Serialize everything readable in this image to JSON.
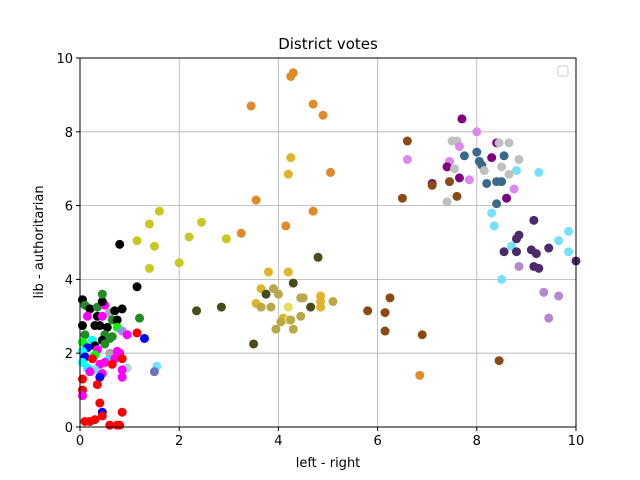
{
  "chart_data": {
    "type": "scatter",
    "title": "District votes",
    "xlabel": "left - right",
    "ylabel": "lib - authoritarian",
    "xlim": [
      0,
      10
    ],
    "ylim": [
      0,
      10
    ],
    "xticks": [
      "0",
      "2",
      "4",
      "6",
      "8",
      "10"
    ],
    "yticks": [
      "0",
      "2",
      "4",
      "6",
      "8",
      "10"
    ],
    "grid": true,
    "legend": "top-right (empty)",
    "points": [
      {
        "x": 4.3,
        "y": 9.6,
        "c": "#e08a28"
      },
      {
        "x": 4.25,
        "y": 9.5,
        "c": "#e08a28"
      },
      {
        "x": 3.45,
        "y": 8.7,
        "c": "#e08a28"
      },
      {
        "x": 4.7,
        "y": 8.75,
        "c": "#e08a28"
      },
      {
        "x": 4.9,
        "y": 8.45,
        "c": "#e08a28"
      },
      {
        "x": 4.25,
        "y": 7.3,
        "c": "#e0b428"
      },
      {
        "x": 4.2,
        "y": 6.85,
        "c": "#e0b428"
      },
      {
        "x": 5.05,
        "y": 6.9,
        "c": "#e08a28"
      },
      {
        "x": 3.55,
        "y": 6.15,
        "c": "#e08a28"
      },
      {
        "x": 4.7,
        "y": 5.85,
        "c": "#e08a28"
      },
      {
        "x": 4.15,
        "y": 5.45,
        "c": "#e08a28"
      },
      {
        "x": 3.25,
        "y": 5.25,
        "c": "#e08a28"
      },
      {
        "x": 1.6,
        "y": 5.85,
        "c": "#c8c820"
      },
      {
        "x": 1.4,
        "y": 5.5,
        "c": "#c8c820"
      },
      {
        "x": 2.45,
        "y": 5.55,
        "c": "#c8c820"
      },
      {
        "x": 2.2,
        "y": 5.15,
        "c": "#c8c820"
      },
      {
        "x": 1.15,
        "y": 5.05,
        "c": "#c8c820"
      },
      {
        "x": 2.95,
        "y": 5.1,
        "c": "#c8c820"
      },
      {
        "x": 1.5,
        "y": 4.9,
        "c": "#c8c820"
      },
      {
        "x": 2.0,
        "y": 4.45,
        "c": "#c8c820"
      },
      {
        "x": 1.4,
        "y": 4.3,
        "c": "#c8c820"
      },
      {
        "x": 0.8,
        "y": 4.95,
        "c": "#000000"
      },
      {
        "x": 1.15,
        "y": 3.8,
        "c": "#000000"
      },
      {
        "x": 4.8,
        "y": 4.6,
        "c": "#4a4a1a"
      },
      {
        "x": 3.8,
        "y": 4.2,
        "c": "#e0b428"
      },
      {
        "x": 4.2,
        "y": 4.2,
        "c": "#e0b428"
      },
      {
        "x": 3.65,
        "y": 3.75,
        "c": "#e0b428"
      },
      {
        "x": 3.9,
        "y": 3.75,
        "c": "#b8a84a"
      },
      {
        "x": 4.3,
        "y": 3.9,
        "c": "#4a4a1a"
      },
      {
        "x": 3.75,
        "y": 3.6,
        "c": "#4a4a1a"
      },
      {
        "x": 4.0,
        "y": 3.6,
        "c": "#b8a84a"
      },
      {
        "x": 4.5,
        "y": 3.5,
        "c": "#b8a84a"
      },
      {
        "x": 4.45,
        "y": 3.5,
        "c": "#b8a84a"
      },
      {
        "x": 4.85,
        "y": 3.55,
        "c": "#e0b428"
      },
      {
        "x": 5.1,
        "y": 3.4,
        "c": "#b8a84a"
      },
      {
        "x": 4.85,
        "y": 3.4,
        "c": "#e0b428"
      },
      {
        "x": 3.55,
        "y": 3.35,
        "c": "#e0b428"
      },
      {
        "x": 3.65,
        "y": 3.25,
        "c": "#b8a84a"
      },
      {
        "x": 3.85,
        "y": 3.25,
        "c": "#b8a84a"
      },
      {
        "x": 4.2,
        "y": 3.25,
        "c": "#e0e050"
      },
      {
        "x": 4.65,
        "y": 3.25,
        "c": "#4a4a1a"
      },
      {
        "x": 4.85,
        "y": 3.25,
        "c": "#e0b428"
      },
      {
        "x": 2.35,
        "y": 3.15,
        "c": "#4a4a1a"
      },
      {
        "x": 2.85,
        "y": 3.25,
        "c": "#4a4a1a"
      },
      {
        "x": 4.1,
        "y": 2.95,
        "c": "#e0b428"
      },
      {
        "x": 4.2,
        "y": 2.9,
        "c": "#e0e050"
      },
      {
        "x": 4.25,
        "y": 2.9,
        "c": "#b8a84a"
      },
      {
        "x": 4.45,
        "y": 3.0,
        "c": "#b8a84a"
      },
      {
        "x": 4.05,
        "y": 2.85,
        "c": "#b8a84a"
      },
      {
        "x": 3.95,
        "y": 2.65,
        "c": "#b8a84a"
      },
      {
        "x": 4.3,
        "y": 2.65,
        "c": "#b8a84a"
      },
      {
        "x": 3.5,
        "y": 2.25,
        "c": "#4a4a1a"
      },
      {
        "x": 6.6,
        "y": 7.75,
        "c": "#8b4a14"
      },
      {
        "x": 7.45,
        "y": 6.65,
        "c": "#8b4a14"
      },
      {
        "x": 6.5,
        "y": 6.2,
        "c": "#8b4a14"
      },
      {
        "x": 5.8,
        "y": 3.15,
        "c": "#8b4a14"
      },
      {
        "x": 6.25,
        "y": 3.5,
        "c": "#8b4a14"
      },
      {
        "x": 6.15,
        "y": 3.1,
        "c": "#8b4a14"
      },
      {
        "x": 6.15,
        "y": 2.6,
        "c": "#8b4a14"
      },
      {
        "x": 6.9,
        "y": 2.5,
        "c": "#8b4a14"
      },
      {
        "x": 8.45,
        "y": 1.8,
        "c": "#8b4a14"
      },
      {
        "x": 6.85,
        "y": 1.4,
        "c": "#e08a28"
      },
      {
        "x": 7.7,
        "y": 8.35,
        "c": "#800080"
      },
      {
        "x": 8.0,
        "y": 8.0,
        "c": "#dd88ee"
      },
      {
        "x": 7.5,
        "y": 7.75,
        "c": "#c0c0c0"
      },
      {
        "x": 7.6,
        "y": 7.75,
        "c": "#c0c0c0"
      },
      {
        "x": 7.65,
        "y": 7.6,
        "c": "#dd88ee"
      },
      {
        "x": 8.4,
        "y": 7.7,
        "c": "#800080"
      },
      {
        "x": 8.45,
        "y": 7.7,
        "c": "#c0c0c0"
      },
      {
        "x": 8.65,
        "y": 7.7,
        "c": "#c0c0c0"
      },
      {
        "x": 8.0,
        "y": 7.45,
        "c": "#3a6a8a"
      },
      {
        "x": 7.75,
        "y": 7.35,
        "c": "#3a6a8a"
      },
      {
        "x": 8.3,
        "y": 7.3,
        "c": "#800080"
      },
      {
        "x": 8.55,
        "y": 7.35,
        "c": "#3a6a8a"
      },
      {
        "x": 8.85,
        "y": 7.25,
        "c": "#c0c0c0"
      },
      {
        "x": 7.45,
        "y": 7.2,
        "c": "#dd88ee"
      },
      {
        "x": 7.4,
        "y": 7.05,
        "c": "#800080"
      },
      {
        "x": 8.05,
        "y": 7.2,
        "c": "#3a6a8a"
      },
      {
        "x": 8.1,
        "y": 7.1,
        "c": "#3a6a8a"
      },
      {
        "x": 8.5,
        "y": 7.05,
        "c": "#c0c0c0"
      },
      {
        "x": 8.8,
        "y": 6.95,
        "c": "#78e0ff"
      },
      {
        "x": 9.25,
        "y": 6.9,
        "c": "#78e0ff"
      },
      {
        "x": 6.6,
        "y": 7.25,
        "c": "#dd88ee"
      },
      {
        "x": 7.55,
        "y": 7.0,
        "c": "#c0c0c0"
      },
      {
        "x": 8.15,
        "y": 6.95,
        "c": "#c0c0c0"
      },
      {
        "x": 8.65,
        "y": 6.85,
        "c": "#c0c0c0"
      },
      {
        "x": 7.65,
        "y": 6.75,
        "c": "#800080"
      },
      {
        "x": 7.85,
        "y": 6.7,
        "c": "#dd88ee"
      },
      {
        "x": 8.2,
        "y": 6.6,
        "c": "#3a6a8a"
      },
      {
        "x": 8.4,
        "y": 6.65,
        "c": "#3a6a8a"
      },
      {
        "x": 8.5,
        "y": 6.65,
        "c": "#3a6a8a"
      },
      {
        "x": 7.1,
        "y": 6.6,
        "c": "#800080"
      },
      {
        "x": 7.1,
        "y": 6.55,
        "c": "#8b4a14"
      },
      {
        "x": 8.75,
        "y": 6.45,
        "c": "#dd88ee"
      },
      {
        "x": 7.6,
        "y": 6.25,
        "c": "#8b4a14"
      },
      {
        "x": 8.6,
        "y": 6.2,
        "c": "#800080"
      },
      {
        "x": 7.4,
        "y": 6.1,
        "c": "#c0c0c0"
      },
      {
        "x": 8.4,
        "y": 6.05,
        "c": "#3a6a8a"
      },
      {
        "x": 8.3,
        "y": 5.8,
        "c": "#78e0ff"
      },
      {
        "x": 8.35,
        "y": 5.45,
        "c": "#78e0ff"
      },
      {
        "x": 9.15,
        "y": 5.6,
        "c": "#4a2a6a"
      },
      {
        "x": 9.85,
        "y": 5.3,
        "c": "#78e0ff"
      },
      {
        "x": 8.85,
        "y": 5.2,
        "c": "#4a2a6a"
      },
      {
        "x": 8.8,
        "y": 5.1,
        "c": "#4a2a6a"
      },
      {
        "x": 9.65,
        "y": 5.05,
        "c": "#78e0ff"
      },
      {
        "x": 8.7,
        "y": 4.9,
        "c": "#78e0ff"
      },
      {
        "x": 9.45,
        "y": 4.85,
        "c": "#4a2a6a"
      },
      {
        "x": 9.1,
        "y": 4.8,
        "c": "#4a2a6a"
      },
      {
        "x": 8.55,
        "y": 4.75,
        "c": "#4a2a6a"
      },
      {
        "x": 8.8,
        "y": 4.75,
        "c": "#4a2a6a"
      },
      {
        "x": 9.2,
        "y": 4.7,
        "c": "#4a2a6a"
      },
      {
        "x": 9.85,
        "y": 4.75,
        "c": "#78e0ff"
      },
      {
        "x": 10.0,
        "y": 4.5,
        "c": "#4a2a6a"
      },
      {
        "x": 8.85,
        "y": 4.35,
        "c": "#b888cc"
      },
      {
        "x": 9.15,
        "y": 4.35,
        "c": "#4a2a6a"
      },
      {
        "x": 9.25,
        "y": 4.3,
        "c": "#4a2a6a"
      },
      {
        "x": 8.5,
        "y": 4.0,
        "c": "#78e0ff"
      },
      {
        "x": 9.35,
        "y": 3.65,
        "c": "#b888cc"
      },
      {
        "x": 9.65,
        "y": 3.55,
        "c": "#b888cc"
      },
      {
        "x": 9.45,
        "y": 2.95,
        "c": "#b888cc"
      },
      {
        "x": 0.05,
        "y": 3.45,
        "c": "#000000"
      },
      {
        "x": 0.1,
        "y": 3.3,
        "c": "#228b22"
      },
      {
        "x": 0.2,
        "y": 3.2,
        "c": "#000000"
      },
      {
        "x": 0.35,
        "y": 3.25,
        "c": "#228b22"
      },
      {
        "x": 0.5,
        "y": 3.3,
        "c": "#ff00ff"
      },
      {
        "x": 0.45,
        "y": 3.4,
        "c": "#000000"
      },
      {
        "x": 0.45,
        "y": 3.6,
        "c": "#228b22"
      },
      {
        "x": 0.85,
        "y": 3.2,
        "c": "#000000"
      },
      {
        "x": 0.6,
        "y": 3.1,
        "c": "#a8a8a8"
      },
      {
        "x": 0.7,
        "y": 3.15,
        "c": "#000000"
      },
      {
        "x": 0.15,
        "y": 3.0,
        "c": "#ff00ff"
      },
      {
        "x": 0.35,
        "y": 3.0,
        "c": "#000000"
      },
      {
        "x": 0.45,
        "y": 3.0,
        "c": "#ff00ff"
      },
      {
        "x": 0.65,
        "y": 2.9,
        "c": "#228b22"
      },
      {
        "x": 0.75,
        "y": 2.9,
        "c": "#000000"
      },
      {
        "x": 1.2,
        "y": 2.95,
        "c": "#228b22"
      },
      {
        "x": 0.05,
        "y": 2.75,
        "c": "#000000"
      },
      {
        "x": 0.3,
        "y": 2.75,
        "c": "#000000"
      },
      {
        "x": 0.4,
        "y": 2.75,
        "c": "#000000"
      },
      {
        "x": 0.55,
        "y": 2.7,
        "c": "#000000"
      },
      {
        "x": 0.75,
        "y": 2.7,
        "c": "#00ff00"
      },
      {
        "x": 0.85,
        "y": 2.6,
        "c": "#9090e8"
      },
      {
        "x": 0.95,
        "y": 2.5,
        "c": "#ff00ff"
      },
      {
        "x": 1.15,
        "y": 2.55,
        "c": "#ff0000"
      },
      {
        "x": 0.1,
        "y": 2.5,
        "c": "#228b22"
      },
      {
        "x": 0.5,
        "y": 2.5,
        "c": "#228b22"
      },
      {
        "x": 0.65,
        "y": 2.45,
        "c": "#228b22"
      },
      {
        "x": 0.25,
        "y": 2.35,
        "c": "#00ffff"
      },
      {
        "x": 0.45,
        "y": 2.35,
        "c": "#000000"
      },
      {
        "x": 0.6,
        "y": 2.4,
        "c": "#228b22"
      },
      {
        "x": 0.05,
        "y": 2.3,
        "c": "#00ff00"
      },
      {
        "x": 0.3,
        "y": 2.2,
        "c": "#000000"
      },
      {
        "x": 0.5,
        "y": 2.25,
        "c": "#228b22"
      },
      {
        "x": 1.3,
        "y": 2.4,
        "c": "#0000ff"
      },
      {
        "x": 0.15,
        "y": 2.15,
        "c": "#0000ff"
      },
      {
        "x": 0.35,
        "y": 2.1,
        "c": "#ff00ff"
      },
      {
        "x": 0.6,
        "y": 2.0,
        "c": "#a8a8a8"
      },
      {
        "x": 0.75,
        "y": 2.05,
        "c": "#ff00ff"
      },
      {
        "x": 0.8,
        "y": 2.0,
        "c": "#ff00ff"
      },
      {
        "x": 0.05,
        "y": 2.05,
        "c": "#00ffff"
      },
      {
        "x": 0.3,
        "y": 1.95,
        "c": "#00ff00"
      },
      {
        "x": 0.1,
        "y": 1.9,
        "c": "#0000ff"
      },
      {
        "x": 0.25,
        "y": 1.85,
        "c": "#ff0000"
      },
      {
        "x": 0.55,
        "y": 1.8,
        "c": "#00ffff"
      },
      {
        "x": 0.7,
        "y": 1.85,
        "c": "#ff00ff"
      },
      {
        "x": 0.85,
        "y": 1.85,
        "c": "#ff0000"
      },
      {
        "x": 0.05,
        "y": 1.75,
        "c": "#00ffff"
      },
      {
        "x": 0.4,
        "y": 1.7,
        "c": "#ff00ff"
      },
      {
        "x": 0.5,
        "y": 1.75,
        "c": "#ff00ff"
      },
      {
        "x": 0.65,
        "y": 1.7,
        "c": "#ff0000"
      },
      {
        "x": 0.95,
        "y": 1.6,
        "c": "#a8d8d8"
      },
      {
        "x": 1.55,
        "y": 1.65,
        "c": "#78e0ff"
      },
      {
        "x": 0.15,
        "y": 1.6,
        "c": "#00ffff"
      },
      {
        "x": 0.3,
        "y": 1.55,
        "c": "#78e0ff"
      },
      {
        "x": 0.2,
        "y": 1.5,
        "c": "#ff00ff"
      },
      {
        "x": 0.45,
        "y": 1.45,
        "c": "#ff00ff"
      },
      {
        "x": 0.85,
        "y": 1.55,
        "c": "#ff00ff"
      },
      {
        "x": 1.5,
        "y": 1.5,
        "c": "#7070c0"
      },
      {
        "x": 0.4,
        "y": 1.35,
        "c": "#0000ff"
      },
      {
        "x": 0.85,
        "y": 1.35,
        "c": "#ff00ff"
      },
      {
        "x": 0.05,
        "y": 1.3,
        "c": "#ff0000"
      },
      {
        "x": 0.35,
        "y": 1.15,
        "c": "#ff0000"
      },
      {
        "x": 0.05,
        "y": 1.0,
        "c": "#ff0000"
      },
      {
        "x": 0.05,
        "y": 0.85,
        "c": "#ff00ff"
      },
      {
        "x": 0.4,
        "y": 0.65,
        "c": "#ff0000"
      },
      {
        "x": 0.45,
        "y": 0.4,
        "c": "#0000ff"
      },
      {
        "x": 0.85,
        "y": 0.4,
        "c": "#ff0000"
      },
      {
        "x": 0.45,
        "y": 0.3,
        "c": "#ff0000"
      },
      {
        "x": 0.3,
        "y": 0.2,
        "c": "#ff0000"
      },
      {
        "x": 0.1,
        "y": 0.15,
        "c": "#ff0000"
      },
      {
        "x": 0.2,
        "y": 0.15,
        "c": "#ff0000"
      },
      {
        "x": 0.6,
        "y": 0.05,
        "c": "#ff0000"
      },
      {
        "x": 0.75,
        "y": 0.05,
        "c": "#ff0000"
      },
      {
        "x": 0.8,
        "y": 0.05,
        "c": "#ff0000"
      }
    ]
  }
}
